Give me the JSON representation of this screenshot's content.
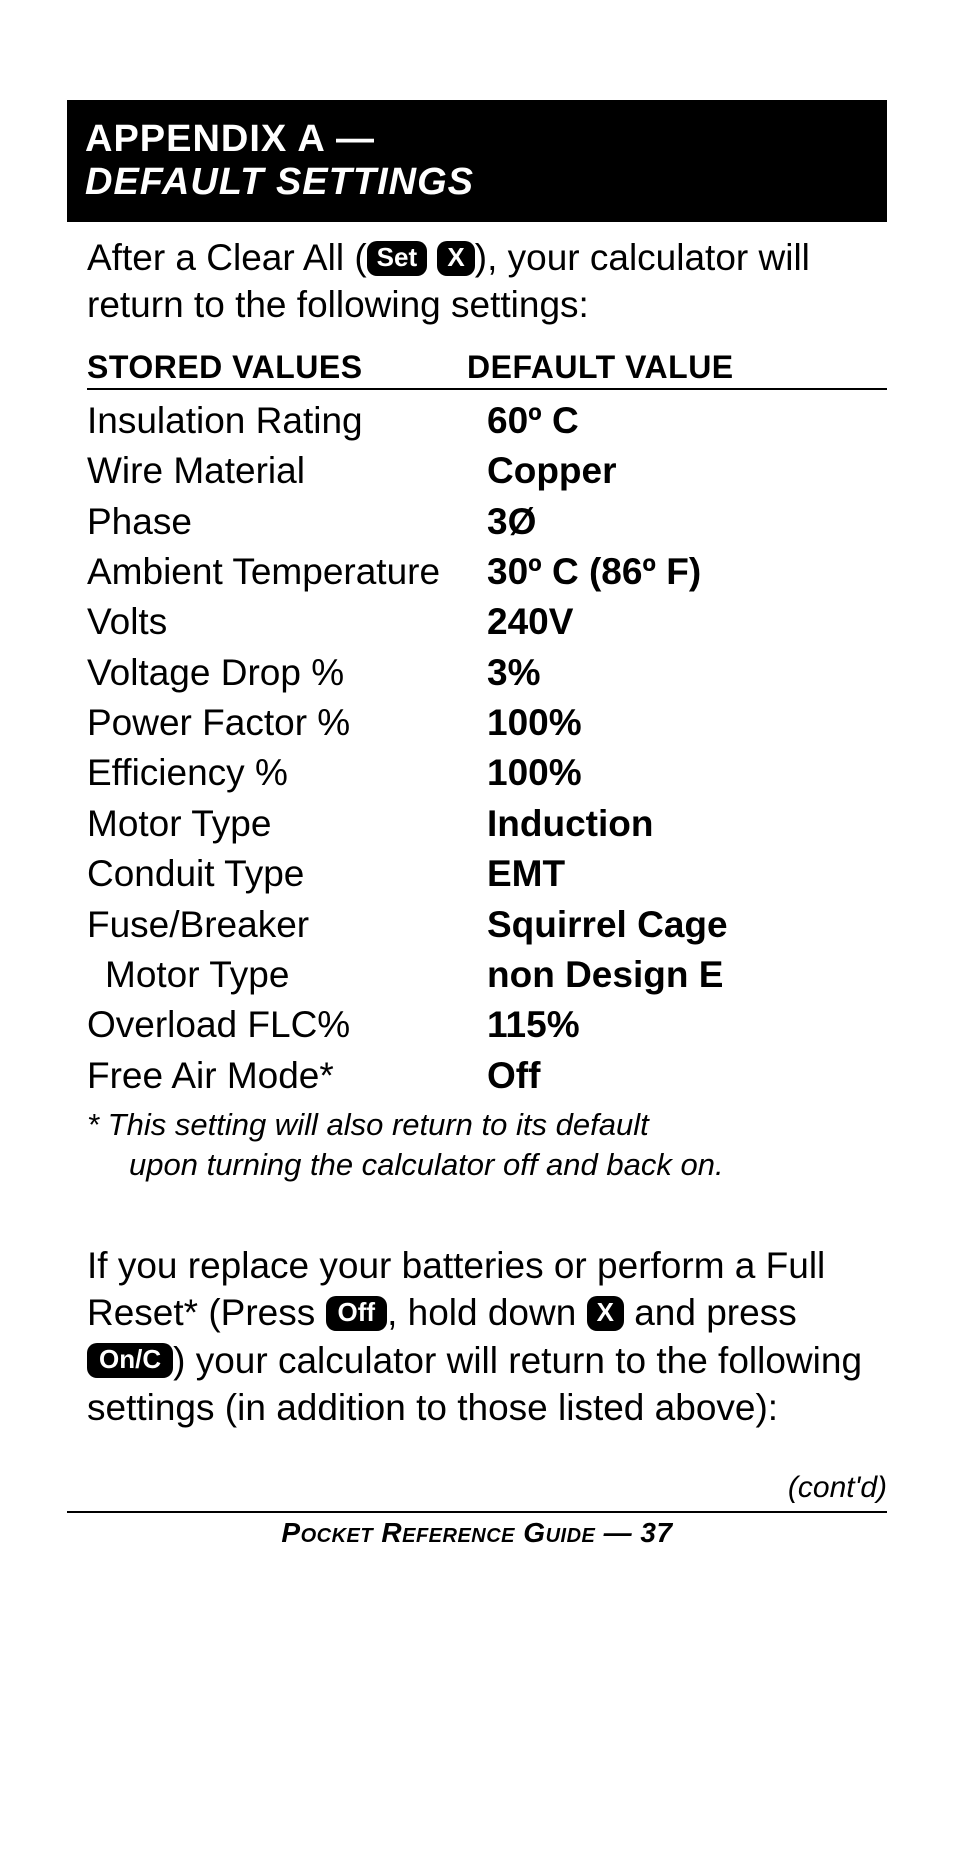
{
  "header": {
    "line1": "APPENDIX A —",
    "line2": "DEFAULT SETTINGS"
  },
  "intro": {
    "part1": "After a Clear All (",
    "key1": "Set",
    "key2": "X",
    "part2": "), your calculator will return to the following settings:"
  },
  "table": {
    "header_left": "STORED VALUES",
    "header_right": "DEFAULT VALUE",
    "rows": [
      {
        "label": "Insulation Rating",
        "value": "60º C"
      },
      {
        "label": "Wire Material",
        "value": "Copper"
      },
      {
        "label": "Phase",
        "value": "3Ø"
      },
      {
        "label": "Ambient Temperature",
        "value": "30º C (86º F)"
      },
      {
        "label": "Volts",
        "value": "240V"
      },
      {
        "label": "Voltage Drop %",
        "value": "3%"
      },
      {
        "label": "Power Factor %",
        "value": "100%"
      },
      {
        "label": "Efficiency %",
        "value": "100%"
      },
      {
        "label": "Motor Type",
        "value": "Induction"
      },
      {
        "label": "Conduit Type",
        "value": "EMT"
      },
      {
        "label": "Fuse/Breaker",
        "value": "Squirrel Cage"
      },
      {
        "label": "Motor Type",
        "value": "non Design E",
        "indent": true
      },
      {
        "label": "Overload FLC%",
        "value": "115%"
      },
      {
        "label": "Free Air Mode*",
        "value": "Off"
      }
    ]
  },
  "footnote": {
    "line1": "* This setting will also return to its default",
    "line2": "upon turning the calculator off and back on."
  },
  "body2": {
    "part1": "If you replace your batteries or perform a Full Reset* (Press ",
    "key1": "Off",
    "part2": ", hold down ",
    "key2": "X",
    "part3": " and press ",
    "key3": "On/C",
    "part4": ") your calculator will return to the following settings (in addition to those listed above):"
  },
  "contd": "(cont'd)",
  "footer": "Pocket Reference Guide — 37"
}
